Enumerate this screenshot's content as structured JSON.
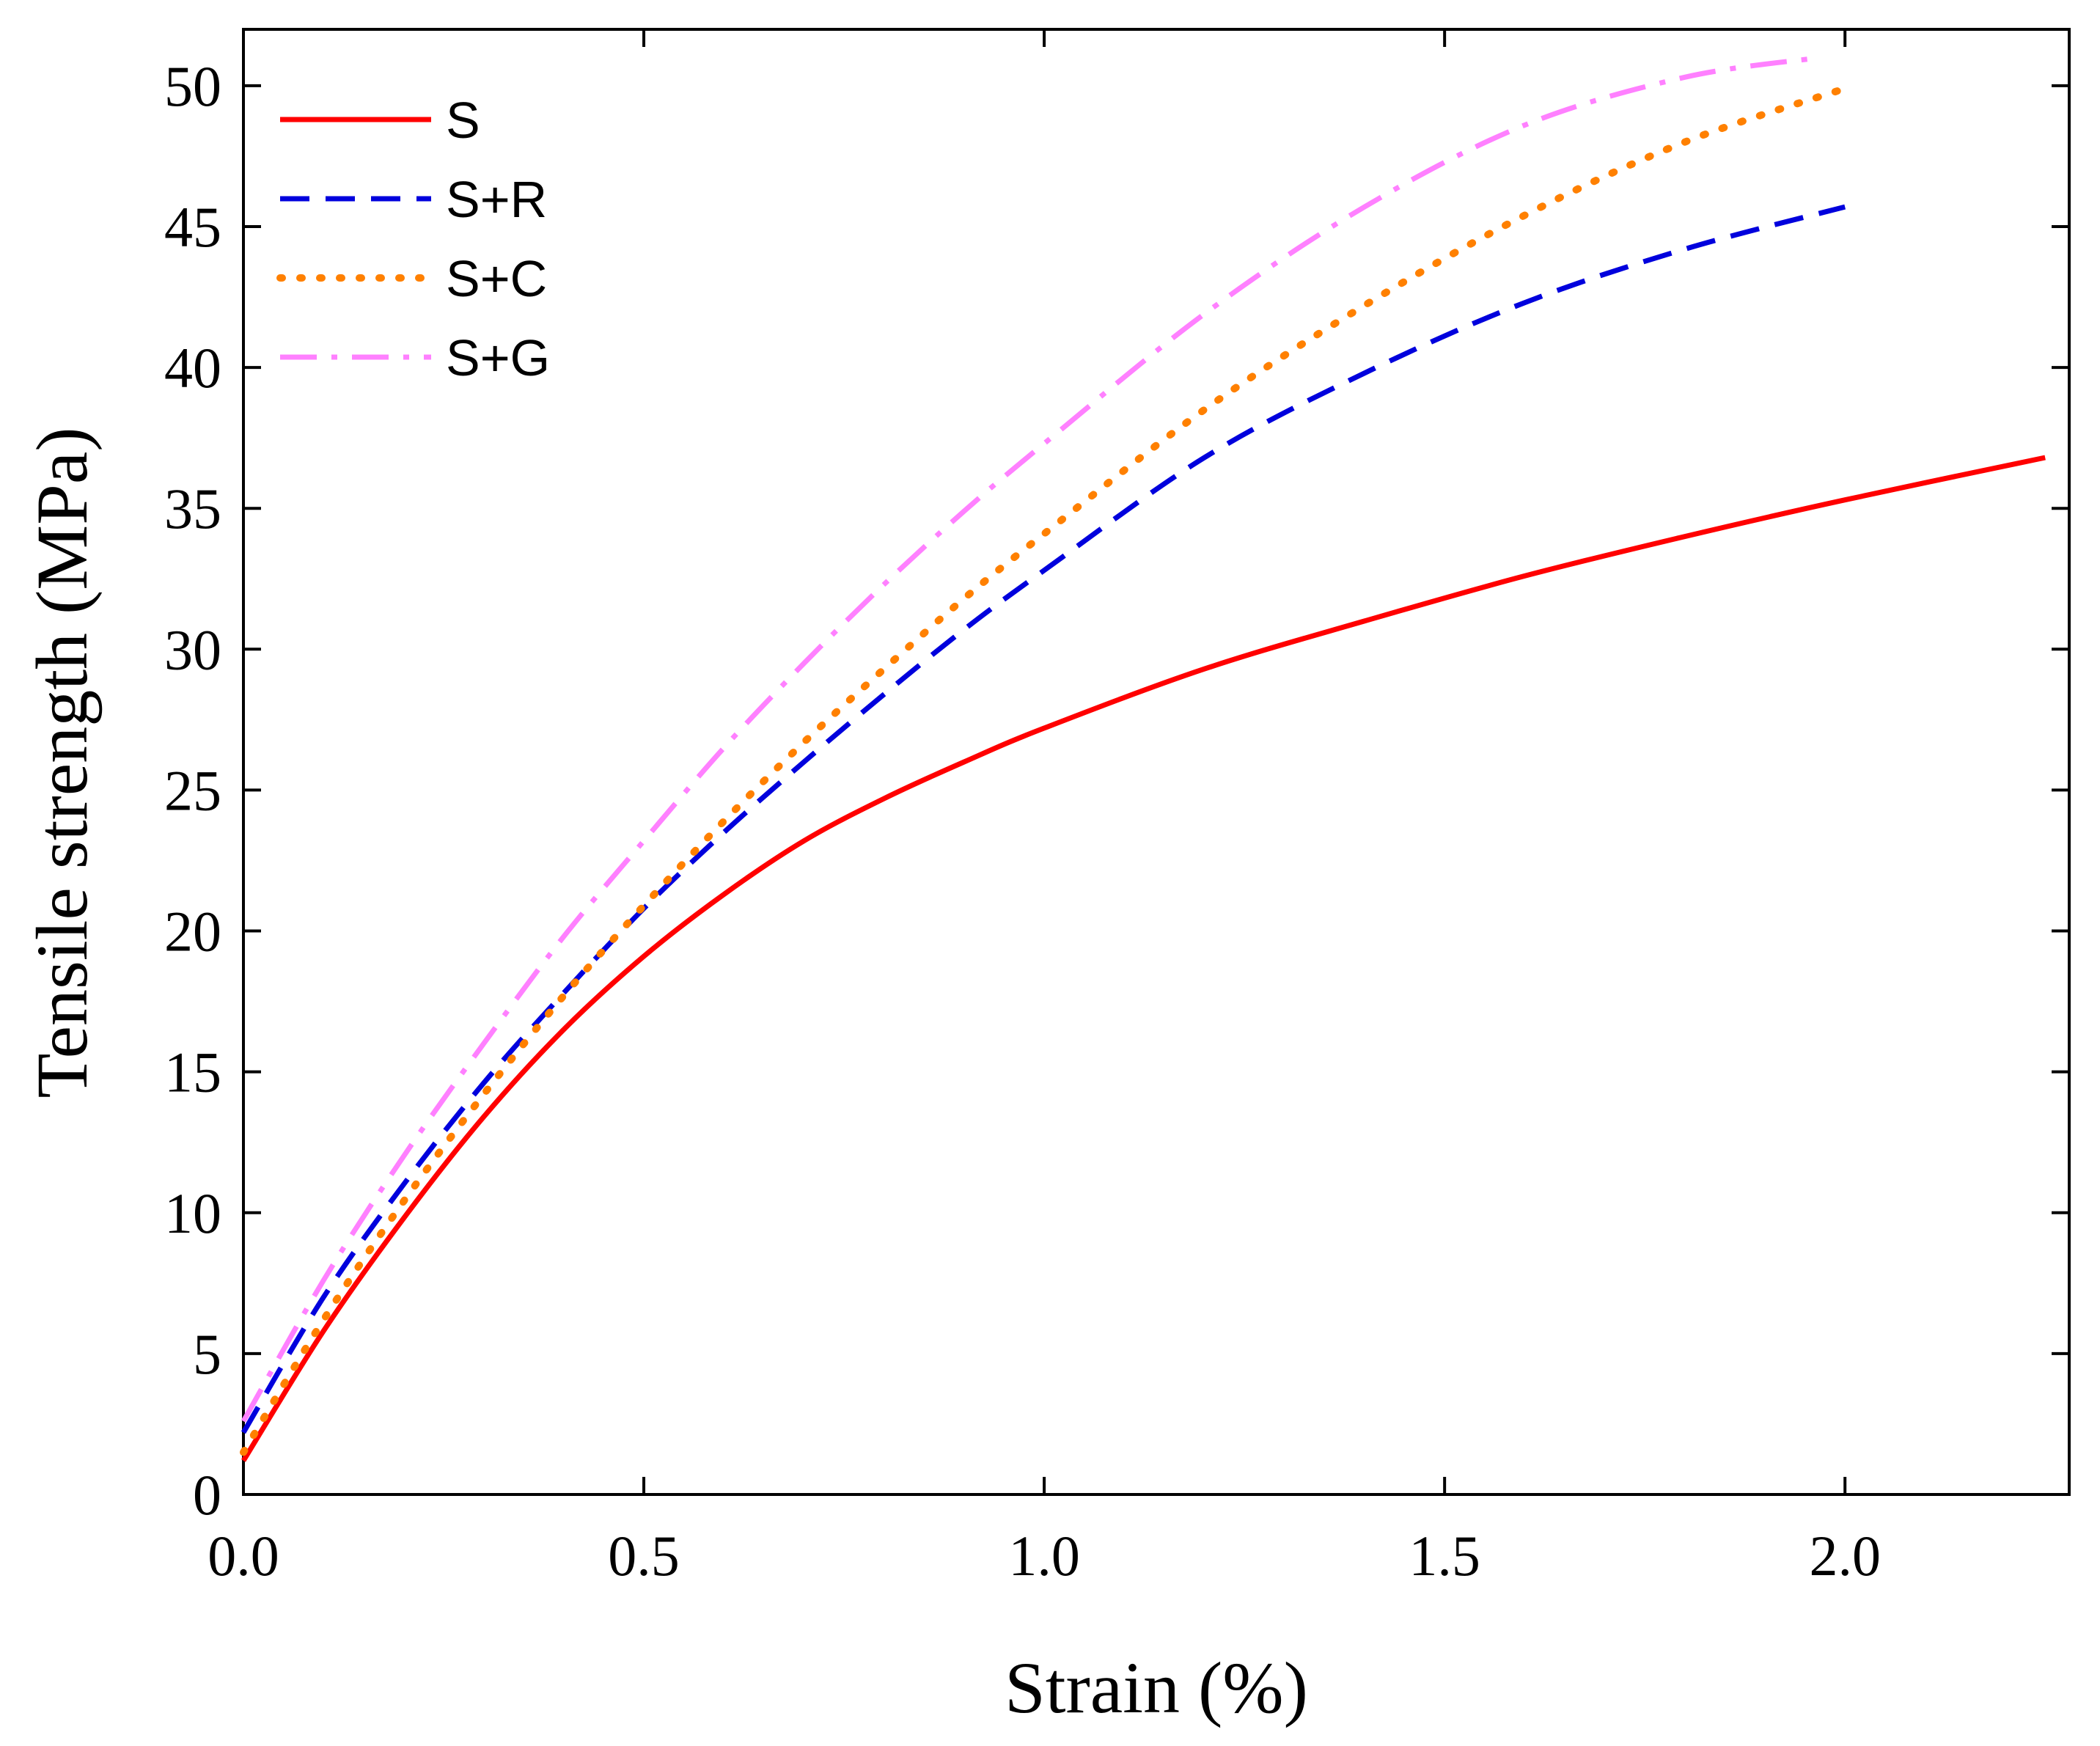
{
  "chart_data": {
    "type": "line",
    "title": "",
    "xlabel": "Strain (%)",
    "ylabel": "Tensile strength (MPa)",
    "xlim": [
      0,
      2.28
    ],
    "ylim": [
      0,
      52
    ],
    "xticks": [
      0,
      0.5,
      1.0,
      1.5,
      2.0
    ],
    "xtick_labels": [
      "0.0",
      "0.5",
      "1.0",
      "1.5",
      "2.0"
    ],
    "yticks": [
      0,
      5,
      10,
      15,
      20,
      25,
      30,
      35,
      40,
      45,
      50
    ],
    "ytick_labels": [
      "0",
      "5",
      "10",
      "15",
      "20",
      "25",
      "30",
      "35",
      "40",
      "45",
      "50"
    ],
    "grid": false,
    "legend_position": "top-left",
    "series": [
      {
        "name": "S",
        "color": "#ff0000",
        "style": "solid",
        "x": [
          0,
          0.1,
          0.2,
          0.3,
          0.4,
          0.5,
          0.6,
          0.7,
          0.8,
          0.9,
          1.0,
          1.2,
          1.4,
          1.6,
          1.8,
          2.0,
          2.25
        ],
        "y": [
          1.2,
          5.8,
          9.8,
          13.4,
          16.5,
          19.1,
          21.3,
          23.2,
          24.7,
          26.0,
          27.2,
          29.3,
          31.0,
          32.6,
          34.0,
          35.3,
          36.8
        ]
      },
      {
        "name": "S+R",
        "color": "#0000dd",
        "style": "dashed",
        "x": [
          0,
          0.1,
          0.2,
          0.3,
          0.4,
          0.5,
          0.6,
          0.7,
          0.8,
          0.9,
          1.0,
          1.2,
          1.4,
          1.6,
          1.8,
          2.0
        ],
        "y": [
          2.2,
          7.0,
          11.0,
          14.6,
          17.8,
          20.8,
          23.5,
          26.0,
          28.4,
          30.7,
          32.8,
          36.8,
          39.8,
          42.3,
          44.2,
          45.7
        ]
      },
      {
        "name": "S+C",
        "color": "#ff8000",
        "style": "dotted",
        "x": [
          0,
          0.1,
          0.2,
          0.3,
          0.4,
          0.5,
          0.6,
          0.7,
          0.8,
          0.9,
          1.0,
          1.2,
          1.4,
          1.6,
          1.8,
          2.0
        ],
        "y": [
          1.5,
          6.2,
          10.4,
          14.2,
          17.7,
          20.9,
          23.9,
          26.7,
          29.3,
          31.8,
          34.1,
          38.5,
          42.2,
          45.4,
          48.0,
          49.9
        ]
      },
      {
        "name": "S+G",
        "color": "#ff80ff",
        "style": "dashdot",
        "x": [
          0,
          0.1,
          0.2,
          0.3,
          0.4,
          0.5,
          0.6,
          0.7,
          0.8,
          0.9,
          1.0,
          1.2,
          1.4,
          1.6,
          1.8,
          1.97
        ],
        "y": [
          2.6,
          7.6,
          12.0,
          16.0,
          19.8,
          23.2,
          26.5,
          29.5,
          32.3,
          34.9,
          37.3,
          41.9,
          45.7,
          48.6,
          50.3,
          51.0
        ]
      }
    ]
  }
}
